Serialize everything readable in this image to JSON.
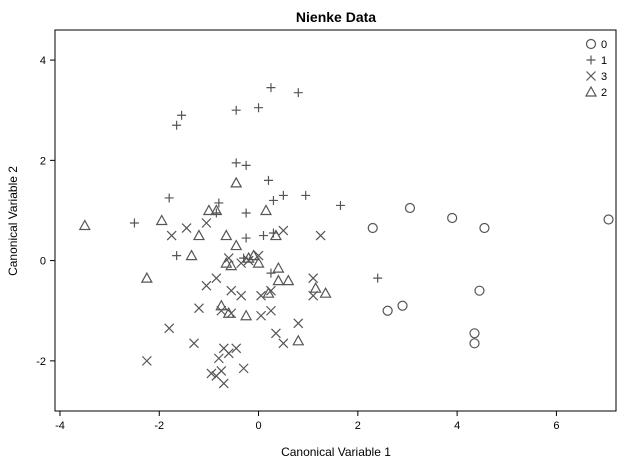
{
  "chart_data": {
    "type": "scatter",
    "title": "Nienke Data",
    "xlabel": "Canonical Variable 1",
    "ylabel": "Canonical Variable 2",
    "xlim": [
      -4.1,
      7.2
    ],
    "ylim": [
      -3.0,
      4.6
    ],
    "xticks": [
      -4,
      -2,
      0,
      2,
      4,
      6
    ],
    "yticks": [
      -2,
      0,
      2,
      4
    ],
    "grid": false,
    "legend_position": "top-right",
    "marker_color": "#555555",
    "series": [
      {
        "name": "0",
        "marker": "circle",
        "points": [
          [
            2.3,
            0.65
          ],
          [
            3.05,
            1.05
          ],
          [
            3.9,
            0.85
          ],
          [
            4.55,
            0.65
          ],
          [
            7.05,
            0.82
          ],
          [
            2.6,
            -1.0
          ],
          [
            2.9,
            -0.9
          ],
          [
            4.45,
            -0.6
          ],
          [
            4.35,
            -1.45
          ],
          [
            4.35,
            -1.65
          ]
        ]
      },
      {
        "name": "1",
        "marker": "plus",
        "points": [
          [
            0.25,
            3.45
          ],
          [
            0.8,
            3.35
          ],
          [
            -1.55,
            2.9
          ],
          [
            -1.65,
            2.7
          ],
          [
            -0.45,
            3.0
          ],
          [
            0.0,
            3.05
          ],
          [
            -0.45,
            1.95
          ],
          [
            -0.25,
            1.9
          ],
          [
            -1.8,
            1.25
          ],
          [
            -2.5,
            0.75
          ],
          [
            -0.8,
            1.15
          ],
          [
            -0.85,
            0.95
          ],
          [
            0.2,
            1.6
          ],
          [
            0.3,
            1.2
          ],
          [
            0.5,
            1.3
          ],
          [
            0.95,
            1.3
          ],
          [
            1.65,
            1.1
          ],
          [
            -0.25,
            0.95
          ],
          [
            0.1,
            0.5
          ],
          [
            -0.25,
            0.45
          ],
          [
            0.3,
            0.55
          ],
          [
            -1.65,
            0.1
          ],
          [
            -0.3,
            0.05
          ],
          [
            0.25,
            -0.25
          ],
          [
            2.4,
            -0.35
          ]
        ]
      },
      {
        "name": "3",
        "marker": "x",
        "points": [
          [
            -1.75,
            0.5
          ],
          [
            -1.45,
            0.65
          ],
          [
            -1.05,
            0.75
          ],
          [
            0.5,
            0.6
          ],
          [
            1.25,
            0.5
          ],
          [
            -0.6,
            0.05
          ],
          [
            -0.35,
            -0.05
          ],
          [
            -0.2,
            0.0
          ],
          [
            0.0,
            0.1
          ],
          [
            1.1,
            -0.35
          ],
          [
            -1.05,
            -0.5
          ],
          [
            -0.85,
            -0.35
          ],
          [
            -0.55,
            -0.6
          ],
          [
            -0.35,
            -0.7
          ],
          [
            0.05,
            -0.7
          ],
          [
            0.25,
            -0.6
          ],
          [
            1.1,
            -0.7
          ],
          [
            -1.2,
            -0.95
          ],
          [
            -0.75,
            -1.0
          ],
          [
            -0.55,
            -1.05
          ],
          [
            0.05,
            -1.1
          ],
          [
            0.25,
            -1.0
          ],
          [
            -1.8,
            -1.35
          ],
          [
            -1.3,
            -1.65
          ],
          [
            0.35,
            -1.45
          ],
          [
            0.5,
            -1.65
          ],
          [
            0.8,
            -1.25
          ],
          [
            -0.7,
            -1.75
          ],
          [
            -0.45,
            -1.75
          ],
          [
            -0.6,
            -1.85
          ],
          [
            -0.8,
            -1.95
          ],
          [
            -0.3,
            -2.15
          ],
          [
            -2.25,
            -2.0
          ],
          [
            -0.95,
            -2.25
          ],
          [
            -0.75,
            -2.2
          ],
          [
            -0.85,
            -2.3
          ],
          [
            -0.7,
            -2.45
          ]
        ]
      },
      {
        "name": "2",
        "marker": "triangle",
        "points": [
          [
            -3.5,
            0.7
          ],
          [
            -1.95,
            0.8
          ],
          [
            -1.2,
            0.5
          ],
          [
            -1.0,
            1.0
          ],
          [
            -0.85,
            1.0
          ],
          [
            -0.45,
            1.55
          ],
          [
            0.15,
            1.0
          ],
          [
            0.35,
            0.5
          ],
          [
            -1.35,
            0.1
          ],
          [
            -0.45,
            0.3
          ],
          [
            -0.65,
            0.5
          ],
          [
            -0.2,
            0.05
          ],
          [
            -0.1,
            0.1
          ],
          [
            -0.55,
            -0.1
          ],
          [
            -0.65,
            -0.05
          ],
          [
            0.0,
            -0.05
          ],
          [
            0.4,
            -0.15
          ],
          [
            0.4,
            -0.4
          ],
          [
            0.6,
            -0.4
          ],
          [
            1.15,
            -0.55
          ],
          [
            1.35,
            -0.65
          ],
          [
            0.2,
            -0.65
          ],
          [
            -0.75,
            -0.9
          ],
          [
            -0.6,
            -1.05
          ],
          [
            -0.25,
            -1.1
          ],
          [
            0.8,
            -1.6
          ],
          [
            -2.25,
            -0.35
          ]
        ]
      }
    ]
  }
}
